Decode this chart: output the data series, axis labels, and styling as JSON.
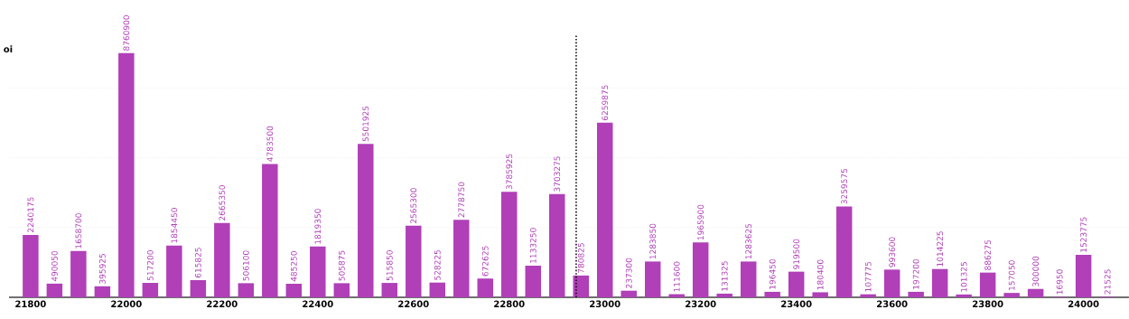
{
  "chart_data": {
    "type": "bar",
    "ylabel": "oi",
    "x": [
      21800,
      21850,
      21900,
      21950,
      22000,
      22050,
      22100,
      22150,
      22200,
      22250,
      22300,
      22350,
      22400,
      22450,
      22500,
      22550,
      22600,
      22650,
      22700,
      22750,
      22800,
      22850,
      22900,
      22950,
      23000,
      23050,
      23100,
      23150,
      23200,
      23250,
      23300,
      23350,
      23400,
      23450,
      23500,
      23550,
      23600,
      23650,
      23700,
      23750,
      23800,
      23850,
      23900,
      23950,
      24000,
      24050
    ],
    "values": [
      2240175,
      490050,
      1658700,
      395925,
      8760900,
      517200,
      1854450,
      615825,
      2665350,
      506100,
      4783500,
      485250,
      1819350,
      505875,
      5501925,
      515850,
      2565300,
      528225,
      2778750,
      672625,
      3785925,
      1133250,
      3703275,
      780825,
      6259875,
      237300,
      1283850,
      111600,
      1965900,
      131325,
      1283625,
      196450,
      919500,
      180400,
      3259575,
      107775,
      993600,
      197200,
      1014225,
      101325,
      886275,
      157050,
      300000,
      16950,
      1523775,
      21525
    ],
    "color": "#b03fb8",
    "data_labels": true,
    "xlim": [
      21755,
      24095
    ],
    "xticks": [
      21800,
      22000,
      22200,
      22400,
      22600,
      22800,
      23000,
      23200,
      23400,
      23600,
      23800,
      24000
    ],
    "ylim": [
      0,
      9400000
    ],
    "yticks": [
      {
        "value": 2500000,
        "label": null
      },
      {
        "value": 5000000,
        "label": null
      },
      {
        "value": 7500000,
        "label": null
      }
    ],
    "tick_labels": "x",
    "grid": "y",
    "ref_lines": [
      {
        "axis": "x",
        "value": 22940,
        "color": "#111111",
        "line_style": "dotted"
      }
    ]
  }
}
